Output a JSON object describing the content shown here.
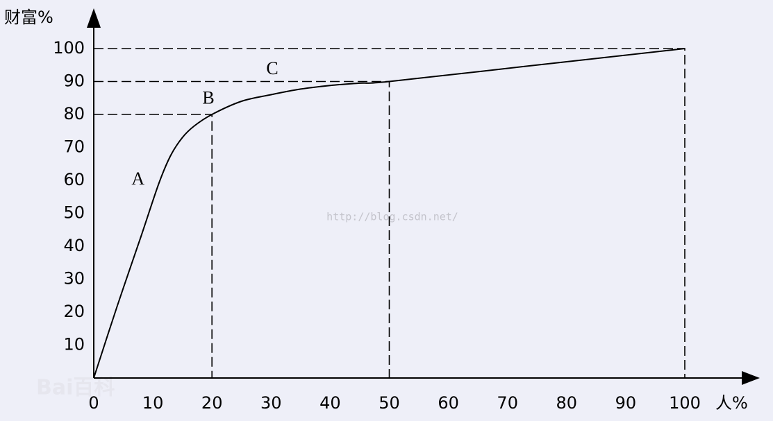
{
  "chart_data": {
    "type": "line",
    "x_label": "人%",
    "y_label": "财富%",
    "x": [
      0,
      4,
      8,
      11,
      13,
      15,
      17,
      20,
      25,
      30,
      35,
      40,
      45,
      50,
      75,
      100
    ],
    "series": [
      {
        "color": "#000000",
        "values": [
          0,
          22,
          43,
          59,
          67.5,
          73,
          76.5,
          80,
          84,
          86,
          87.7,
          88.8,
          89.5,
          90,
          95,
          100
        ]
      }
    ],
    "xlim": [
      0,
      112
    ],
    "ylim": [
      0,
      110
    ],
    "xticks": [
      0,
      10,
      20,
      30,
      40,
      50,
      60,
      70,
      80,
      90,
      100
    ],
    "yticks": [
      10,
      20,
      30,
      40,
      50,
      60,
      70,
      80,
      90,
      100
    ],
    "guides": [
      {
        "x": 20,
        "y": 80
      },
      {
        "x": 50,
        "y": 90
      },
      {
        "x": 100,
        "y": 100
      }
    ],
    "annotations": [
      {
        "text": "A",
        "x": 7.5,
        "y": 60
      },
      {
        "text": "B",
        "x": 19.4,
        "y": 84.5
      },
      {
        "text": "C",
        "x": 30.2,
        "y": 93.5
      }
    ],
    "watermark": "http://blog.csdn.net/",
    "logo": "Bai百科"
  }
}
